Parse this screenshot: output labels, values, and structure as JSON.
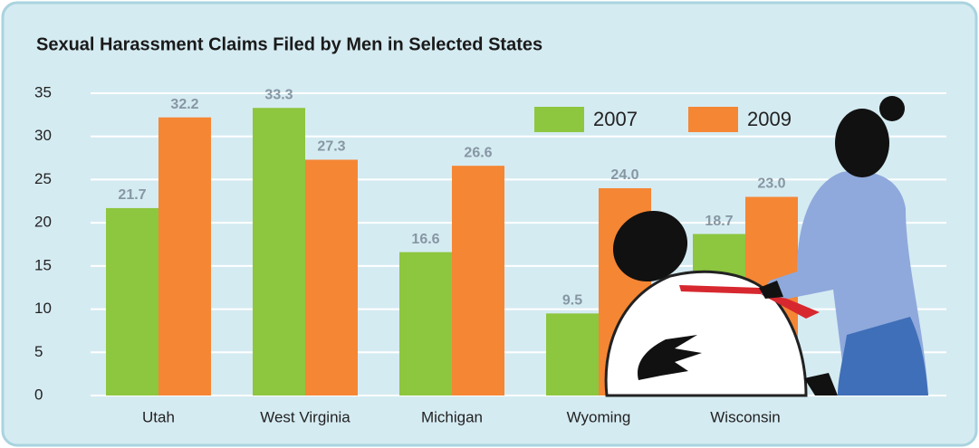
{
  "chart_data": {
    "type": "bar",
    "title": "Sexual Harassment Claims Filed by Men in Selected States",
    "categories": [
      "Utah",
      "West Virginia",
      "Michigan",
      "Wyoming",
      "Wisconsin"
    ],
    "series": [
      {
        "name": "2007",
        "color": "#8dc63f",
        "values": [
          21.7,
          33.3,
          16.6,
          9.5,
          18.7
        ],
        "value_labels": [
          "21.7",
          "33.3",
          "16.6",
          "9.5",
          "18.7"
        ]
      },
      {
        "name": "2009",
        "color": "#f58634",
        "values": [
          32.2,
          27.3,
          26.6,
          24.0,
          23.0
        ],
        "value_labels": [
          "32.2",
          "27.3",
          "26.6",
          "24.0",
          "23.0"
        ]
      }
    ],
    "ylim": [
      0,
      35
    ],
    "yticks": [
      0,
      5,
      10,
      15,
      20,
      25,
      30,
      35
    ],
    "grid": true,
    "legend_position": "top-right"
  }
}
